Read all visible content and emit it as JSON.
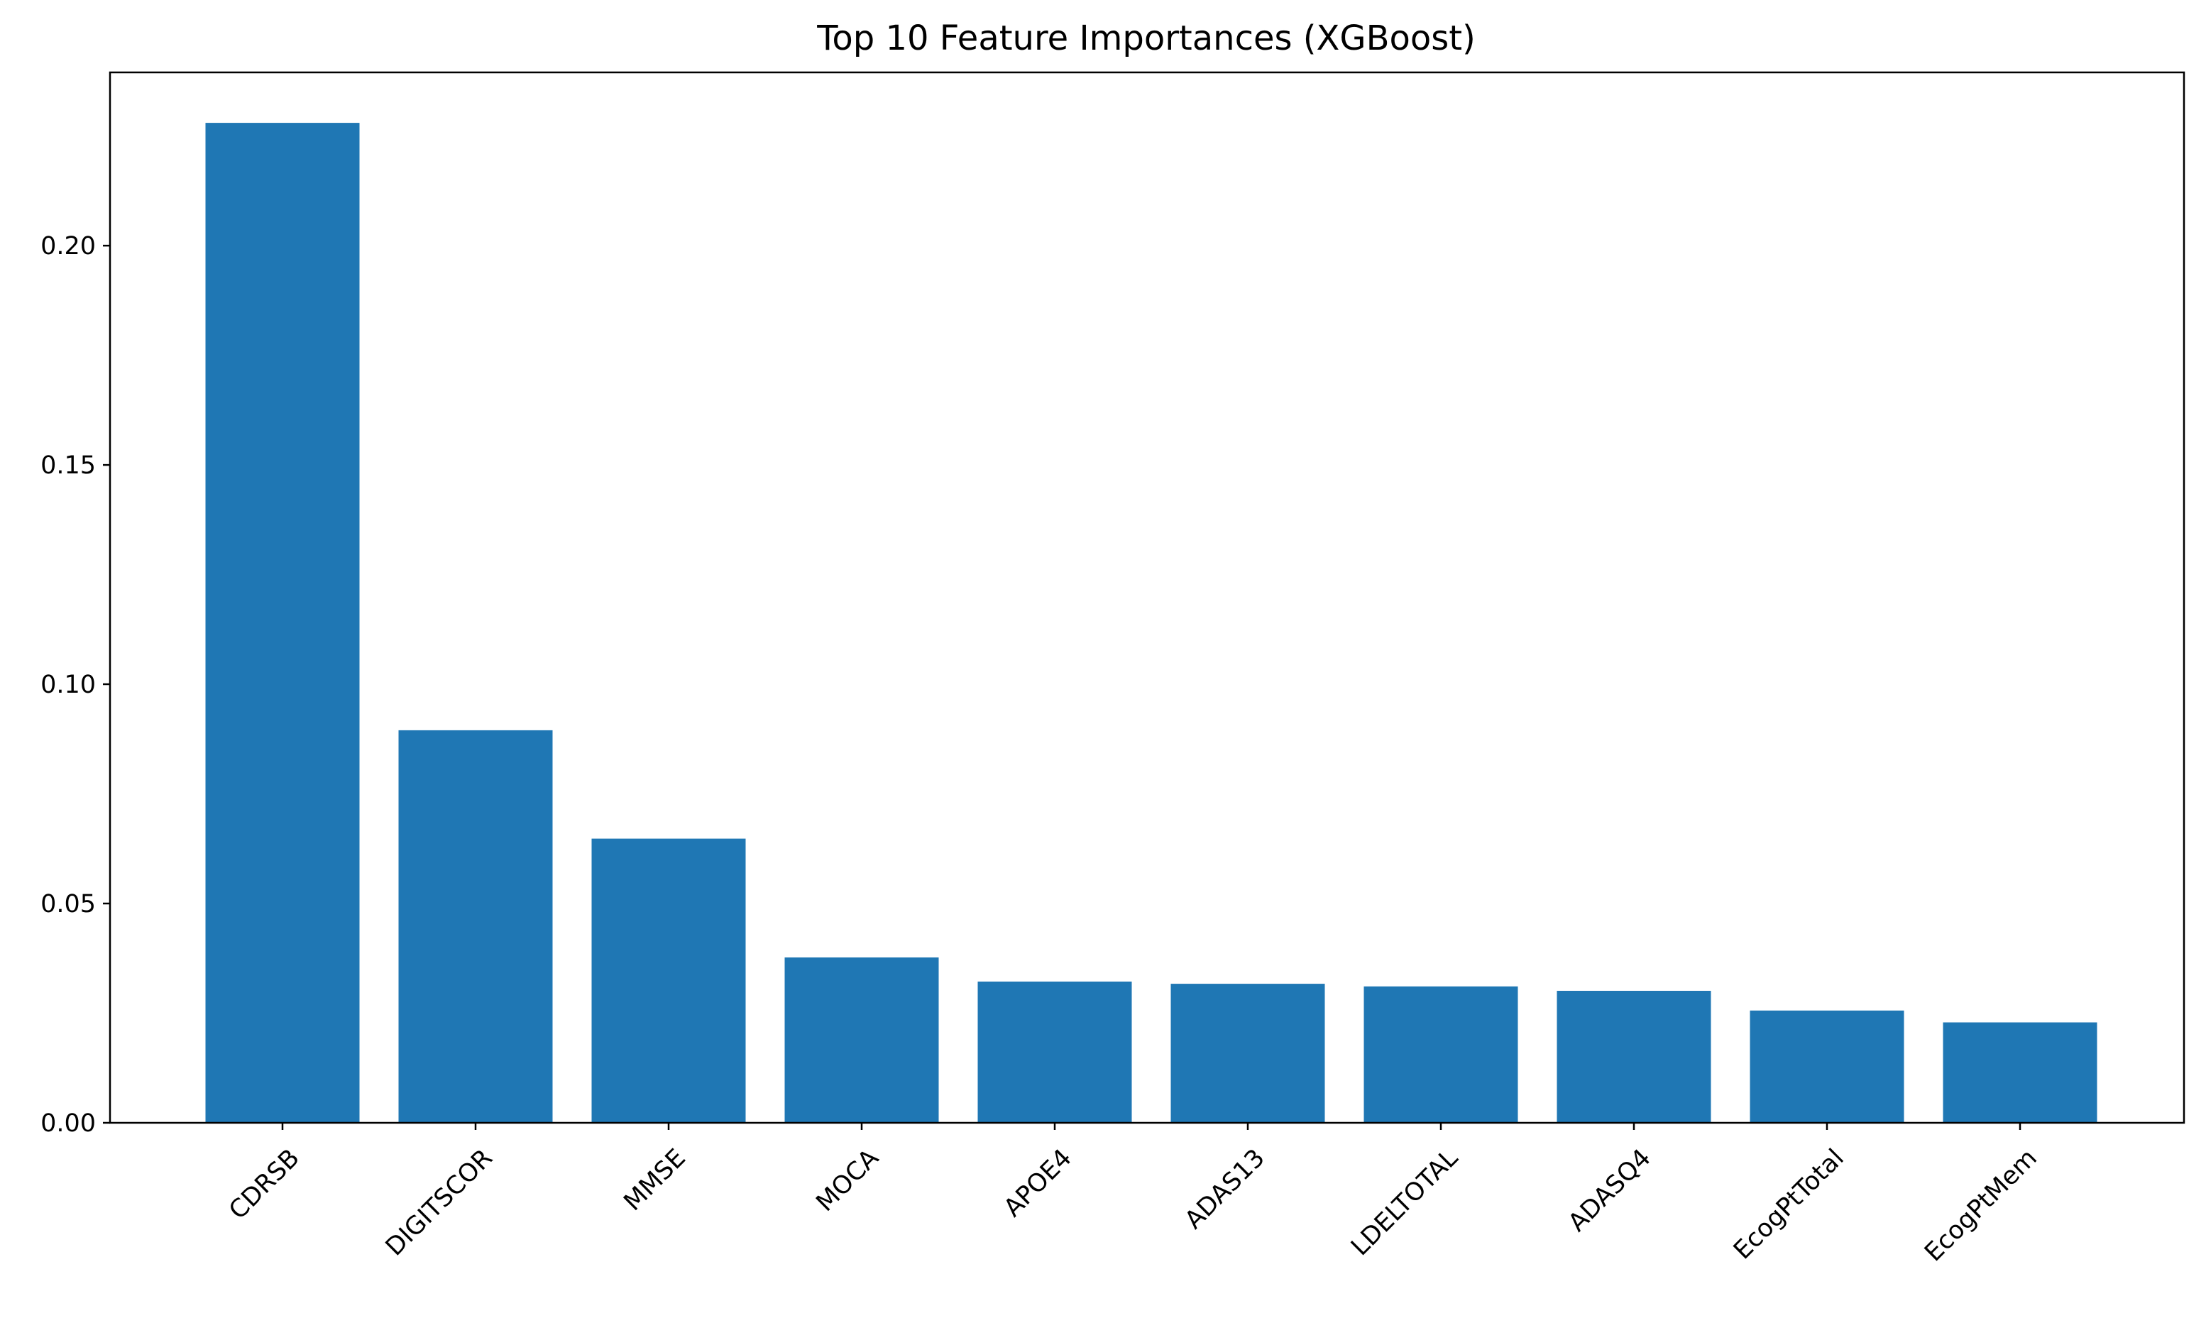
{
  "chart_data": {
    "type": "bar",
    "title": "Top 10 Feature Importances (XGBoost)",
    "xlabel": "",
    "ylabel": "",
    "categories": [
      "CDRSB",
      "DIGITSCOR",
      "MMSE",
      "MOCA",
      "APOE4",
      "ADAS13",
      "LDELTOTAL",
      "ADASQ4",
      "EcogPtTotal",
      "EcogPtMem"
    ],
    "values": [
      0.228,
      0.0895,
      0.0648,
      0.0377,
      0.0322,
      0.0317,
      0.0311,
      0.0301,
      0.0256,
      0.0229
    ],
    "ylim": [
      0,
      0.2395
    ],
    "yticks": [
      0.0,
      0.05,
      0.1,
      0.15,
      0.2
    ],
    "ytick_labels": [
      "0.00",
      "0.05",
      "0.10",
      "0.15",
      "0.20"
    ],
    "xtick_rotation": "45 degrees",
    "grid": false,
    "legend": "none",
    "bar_color": "#1f77b4"
  }
}
